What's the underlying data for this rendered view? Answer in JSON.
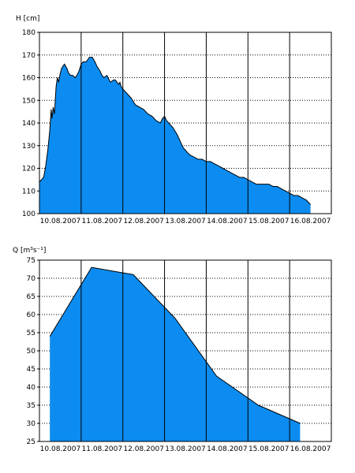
{
  "colors": {
    "fill": "#0c8cf0",
    "outline": "#000000",
    "grid": "#000000",
    "background": "#ffffff"
  },
  "chart_data": [
    {
      "type": "area",
      "ylabel": "H [cm]",
      "ylim": [
        100,
        180
      ],
      "yticks": [
        100,
        110,
        120,
        130,
        140,
        150,
        160,
        170,
        180
      ],
      "xlim": [
        0,
        7
      ],
      "date_ticks": [
        "10.08.2007",
        "11.08.2007",
        "12.08.2007",
        "13.08.2007",
        "14.08.2007",
        "15.08.2007",
        "16.08.2007"
      ],
      "grid": true,
      "series": [
        {
          "x": [
            0,
            0.1,
            0.15,
            0.2,
            0.25,
            0.28,
            0.3,
            0.33,
            0.36,
            0.4,
            0.43,
            0.46,
            0.5,
            0.53,
            0.56,
            0.6,
            0.66,
            0.7,
            0.75,
            0.8,
            0.85,
            0.9,
            0.95,
            1.0,
            1.05,
            1.12,
            1.2,
            1.27,
            1.3,
            1.33,
            1.38,
            1.45,
            1.5,
            1.55,
            1.62,
            1.7,
            1.78,
            1.82,
            1.86,
            1.9,
            1.93,
            1.96,
            2.0,
            2.05,
            2.1,
            2.15,
            2.2,
            2.3,
            2.4,
            2.5,
            2.6,
            2.7,
            2.8,
            2.9,
            2.95,
            3.0,
            3.05,
            3.1,
            3.15,
            3.2,
            3.3,
            3.4,
            3.45,
            3.5,
            3.55,
            3.6,
            3.7,
            3.8,
            3.9,
            4.0,
            4.1,
            4.2,
            4.3,
            4.4,
            4.5,
            4.6,
            4.7,
            4.8,
            4.9,
            5.0,
            5.1,
            5.2,
            5.3,
            5.4,
            5.5,
            5.6,
            5.7,
            5.8,
            5.9,
            6.0,
            6.1,
            6.2,
            6.3,
            6.4,
            6.45,
            6.5
          ],
          "y": [
            114,
            116,
            121,
            128,
            137,
            146,
            142,
            147,
            144,
            156,
            160,
            158,
            162,
            164,
            165,
            166,
            164,
            162,
            161,
            161,
            160,
            161,
            163,
            166,
            167,
            167,
            169,
            169,
            168,
            167,
            165,
            163,
            161,
            160,
            161,
            158,
            159,
            159,
            158,
            157,
            158,
            156,
            155,
            154,
            153,
            152,
            151,
            148,
            147,
            146,
            144,
            143,
            141,
            140,
            142,
            143,
            141,
            140,
            139,
            138,
            135,
            131,
            129,
            128,
            127,
            126,
            125,
            124,
            124,
            123,
            123,
            122,
            121,
            120,
            119,
            118,
            117,
            116,
            116,
            115,
            114,
            113,
            113,
            113,
            113,
            112,
            112,
            111,
            110,
            109,
            108,
            108,
            107,
            106,
            105,
            104
          ]
        }
      ]
    },
    {
      "type": "area",
      "ylabel": "Q [m³s⁻¹]",
      "ylim": [
        25,
        75
      ],
      "yticks": [
        25,
        30,
        35,
        40,
        45,
        50,
        55,
        60,
        65,
        70,
        75
      ],
      "xlim": [
        0,
        7
      ],
      "date_ticks": [
        "10.08.2007",
        "11.08.2007",
        "12.08.2007",
        "13.08.2007",
        "14.08.2007",
        "15.08.2007",
        "16.08.2007"
      ],
      "grid": true,
      "series": [
        {
          "x": [
            0.25,
            1.25,
            2.25,
            3.25,
            4.25,
            5.25,
            6.25
          ],
          "y": [
            54,
            73,
            71,
            59,
            43,
            35,
            30
          ]
        }
      ]
    }
  ]
}
